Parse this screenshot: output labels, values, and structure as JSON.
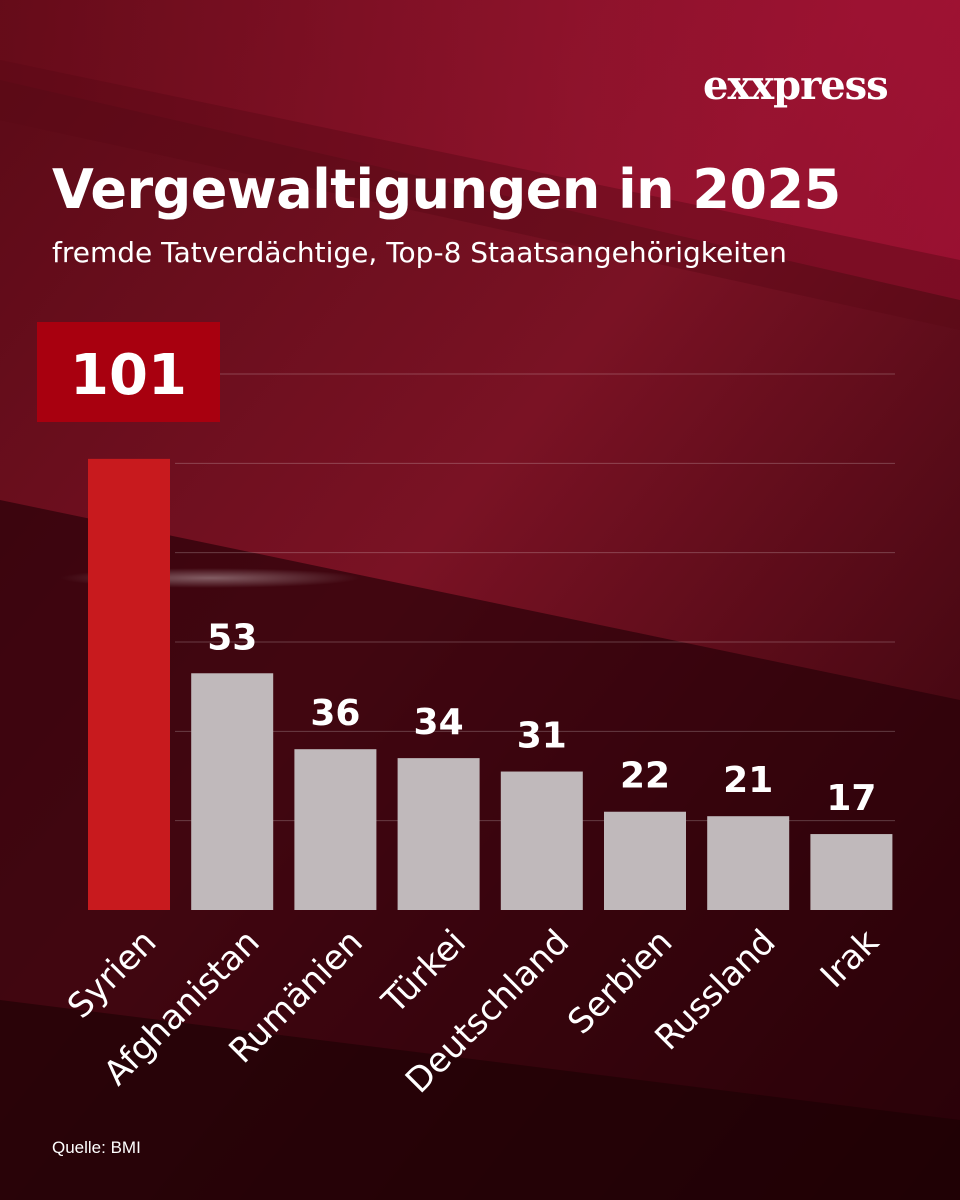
{
  "brand": {
    "logo_text": "exxpress"
  },
  "header": {
    "title": "Vergewaltigungen in 2025",
    "subtitle": "fremde Tatverdächtige, Top-8 Staatsangehörigkeiten"
  },
  "footer": {
    "source": "Quelle: BMI"
  },
  "colors": {
    "background_dark": "#2a0208",
    "background_mid": "#6e0d1c",
    "background_light": "#9a1430",
    "highlight_bar": "#c81a1e",
    "highlight_box": "#a8000f",
    "bar": "#c0b9bb",
    "text": "#ffffff",
    "gridline": "#ffffff"
  },
  "chart_data": {
    "type": "bar",
    "title": "Vergewaltigungen in 2025",
    "subtitle": "fremde Tatverdächtige, Top-8 Staatsangehörigkeiten",
    "categories": [
      "Syrien",
      "Afghanistan",
      "Rumänien",
      "Türkei",
      "Deutschland",
      "Serbien",
      "Russland",
      "Irak"
    ],
    "values": [
      101,
      53,
      36,
      34,
      31,
      22,
      21,
      17
    ],
    "highlight_index": 0,
    "xlabel": "",
    "ylabel": "",
    "ylim": [
      0,
      120
    ],
    "grid": true,
    "legend": "none"
  }
}
